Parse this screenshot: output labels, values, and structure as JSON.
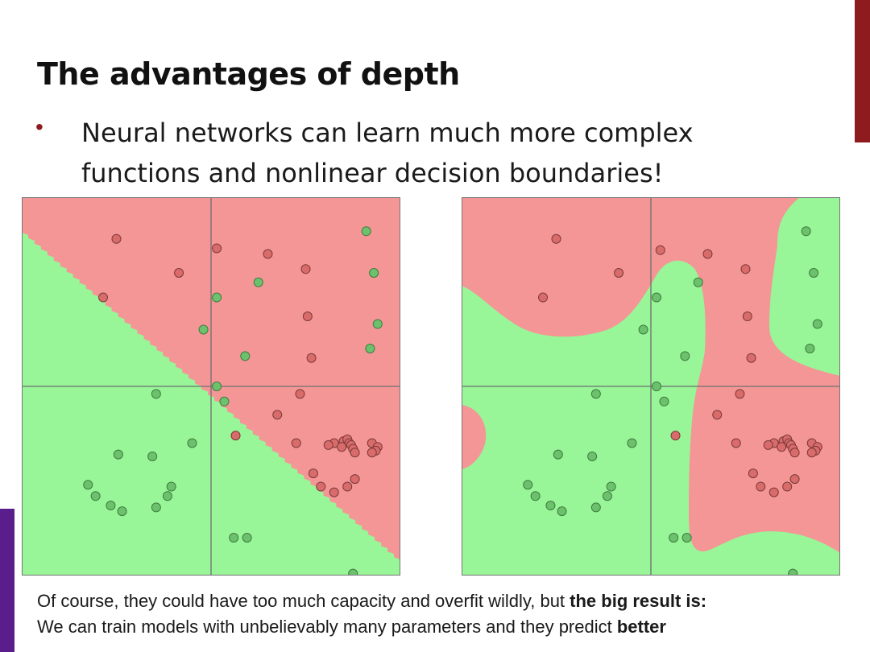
{
  "slide": {
    "title": "The advantages of depth",
    "bullet": "Neural networks can learn much more complex functions and nonlinear decision boundaries!",
    "footer": {
      "line1_pre": "Of course, they could have too much capacity and overfit wildly, but ",
      "line1_bold": "the big result is:",
      "line2_pre": "We can train models with unbelievably many parameters and they predict ",
      "line2_bold": "better"
    },
    "colors": {
      "accent_red": "#8e1c1f",
      "accent_purple": "#5a1e8c",
      "region_red": "#f59696",
      "region_green": "#98f598",
      "point_red": "#d96b6b",
      "point_green": "#6cc26c"
    }
  },
  "chart_data": [
    {
      "type": "scatter",
      "boundary": "linear",
      "xlim": [
        -1,
        1
      ],
      "ylim": [
        -1,
        1
      ],
      "grid": true,
      "red_points": [
        [
          -0.5,
          0.78
        ],
        [
          -0.17,
          0.6
        ],
        [
          0.03,
          0.73
        ],
        [
          0.3,
          0.7
        ],
        [
          0.5,
          0.62
        ],
        [
          -0.57,
          0.47
        ],
        [
          0.51,
          0.37
        ],
        [
          0.53,
          0.15
        ],
        [
          0.47,
          -0.04
        ],
        [
          0.35,
          -0.15
        ],
        [
          0.13,
          -0.26
        ],
        [
          0.45,
          -0.3
        ],
        [
          0.65,
          -0.3
        ],
        [
          0.7,
          -0.29
        ],
        [
          0.72,
          -0.28
        ],
        [
          0.73,
          -0.3
        ],
        [
          0.74,
          -0.31
        ],
        [
          0.75,
          -0.33
        ],
        [
          0.76,
          -0.35
        ],
        [
          0.69,
          -0.32
        ],
        [
          0.62,
          -0.31
        ],
        [
          0.54,
          -0.46
        ],
        [
          0.58,
          -0.53
        ],
        [
          0.65,
          -0.56
        ],
        [
          0.72,
          -0.53
        ],
        [
          0.76,
          -0.49
        ],
        [
          0.85,
          -0.3
        ],
        [
          0.88,
          -0.32
        ],
        [
          0.87,
          -0.34
        ],
        [
          0.85,
          -0.35
        ]
      ],
      "green_points": [
        [
          0.82,
          0.82
        ],
        [
          0.86,
          0.6
        ],
        [
          0.25,
          0.55
        ],
        [
          0.03,
          0.47
        ],
        [
          -0.04,
          0.3
        ],
        [
          0.88,
          0.33
        ],
        [
          0.84,
          0.2
        ],
        [
          0.18,
          0.16
        ],
        [
          0.03,
          0.0
        ],
        [
          0.07,
          -0.08
        ],
        [
          -0.29,
          -0.04
        ],
        [
          -0.1,
          -0.3
        ],
        [
          -0.49,
          -0.36
        ],
        [
          -0.31,
          -0.37
        ],
        [
          -0.65,
          -0.52
        ],
        [
          -0.61,
          -0.58
        ],
        [
          -0.53,
          -0.63
        ],
        [
          -0.47,
          -0.66
        ],
        [
          -0.29,
          -0.64
        ],
        [
          -0.23,
          -0.58
        ],
        [
          -0.21,
          -0.53
        ],
        [
          0.12,
          -0.8
        ],
        [
          0.19,
          -0.8
        ],
        [
          0.75,
          -0.99
        ]
      ]
    },
    {
      "type": "scatter",
      "boundary": "nonlinear",
      "xlim": [
        -1,
        1
      ],
      "ylim": [
        -1,
        1
      ],
      "grid": true,
      "red_points": [
        [
          -0.5,
          0.78
        ],
        [
          -0.17,
          0.6
        ],
        [
          0.05,
          0.72
        ],
        [
          0.3,
          0.7
        ],
        [
          0.5,
          0.62
        ],
        [
          -0.57,
          0.47
        ],
        [
          0.51,
          0.37
        ],
        [
          0.53,
          0.15
        ],
        [
          0.47,
          -0.04
        ],
        [
          0.35,
          -0.15
        ],
        [
          0.13,
          -0.26
        ],
        [
          0.45,
          -0.3
        ],
        [
          0.65,
          -0.3
        ],
        [
          0.7,
          -0.29
        ],
        [
          0.72,
          -0.28
        ],
        [
          0.73,
          -0.3
        ],
        [
          0.74,
          -0.31
        ],
        [
          0.75,
          -0.33
        ],
        [
          0.76,
          -0.35
        ],
        [
          0.69,
          -0.32
        ],
        [
          0.62,
          -0.31
        ],
        [
          0.54,
          -0.46
        ],
        [
          0.58,
          -0.53
        ],
        [
          0.65,
          -0.56
        ],
        [
          0.72,
          -0.53
        ],
        [
          0.76,
          -0.49
        ],
        [
          0.85,
          -0.3
        ],
        [
          0.88,
          -0.32
        ],
        [
          0.87,
          -0.34
        ],
        [
          0.85,
          -0.35
        ]
      ],
      "green_points": [
        [
          0.82,
          0.82
        ],
        [
          0.86,
          0.6
        ],
        [
          0.25,
          0.55
        ],
        [
          0.03,
          0.47
        ],
        [
          -0.04,
          0.3
        ],
        [
          0.88,
          0.33
        ],
        [
          0.84,
          0.2
        ],
        [
          0.18,
          0.16
        ],
        [
          0.03,
          0.0
        ],
        [
          0.07,
          -0.08
        ],
        [
          -0.29,
          -0.04
        ],
        [
          -0.1,
          -0.3
        ],
        [
          -0.49,
          -0.36
        ],
        [
          -0.31,
          -0.37
        ],
        [
          -0.65,
          -0.52
        ],
        [
          -0.61,
          -0.58
        ],
        [
          -0.53,
          -0.63
        ],
        [
          -0.47,
          -0.66
        ],
        [
          -0.29,
          -0.64
        ],
        [
          -0.23,
          -0.58
        ],
        [
          -0.21,
          -0.53
        ],
        [
          0.12,
          -0.8
        ],
        [
          0.19,
          -0.8
        ],
        [
          0.75,
          -0.99
        ]
      ]
    }
  ]
}
